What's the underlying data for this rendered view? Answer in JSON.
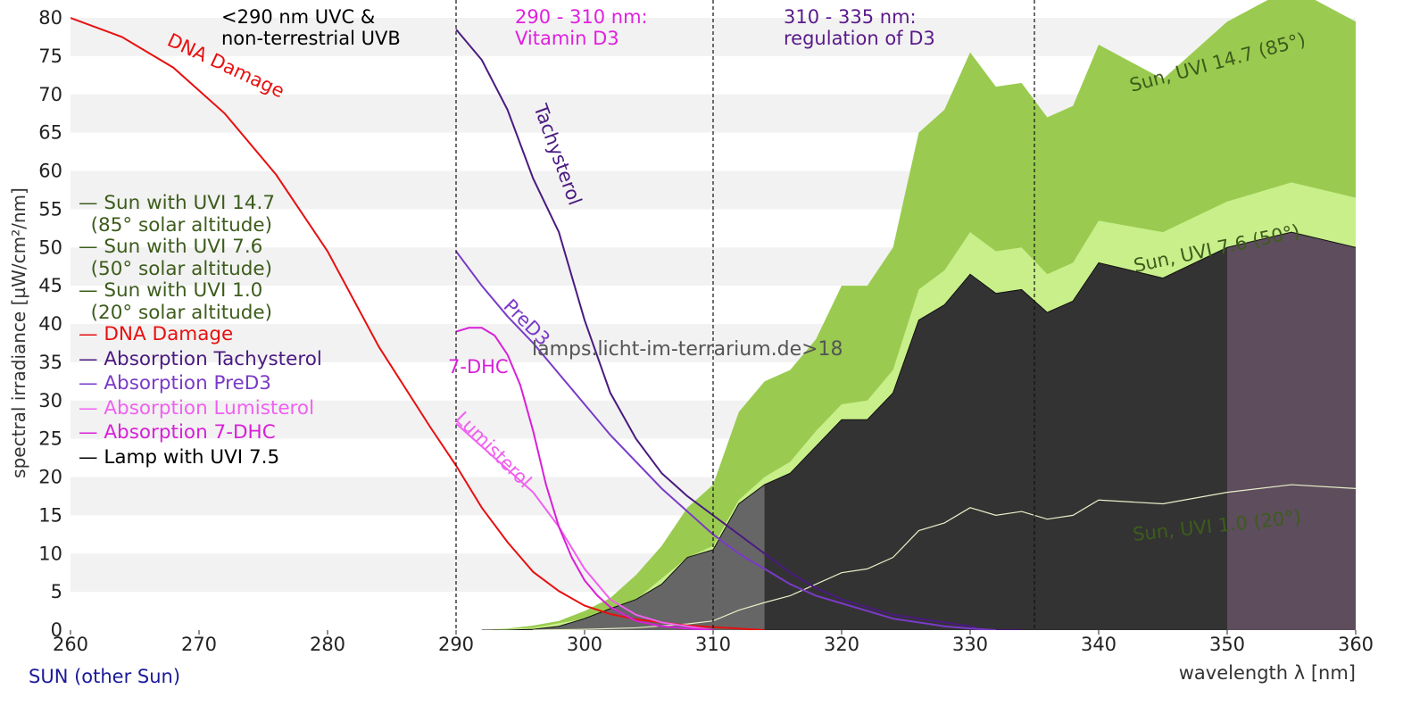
{
  "chart_data": {
    "type": "area",
    "xlabel": "wavelength λ [nm]",
    "ylabel": "spectral irradiance [µW/cm²/nm]",
    "xlim": [
      260,
      360
    ],
    "ylim": [
      0,
      80
    ],
    "x_ticks": [
      "260",
      "270",
      "280",
      "290",
      "300",
      "310",
      "320",
      "330",
      "340",
      "350",
      "360"
    ],
    "y_ticks": [
      "0",
      "5",
      "10",
      "15",
      "20",
      "25",
      "30",
      "35",
      "40",
      "45",
      "50",
      "55",
      "60",
      "65",
      "70",
      "75",
      "80"
    ],
    "grid": "horizontal alternating bands",
    "vlines": [
      290,
      310,
      335
    ],
    "region_labels": [
      {
        "text": "<290 nm UVC &\nnon-terrestrial UVB",
        "color": "#000000"
      },
      {
        "text": "290 - 310 nm:\nVitamin D3",
        "color": "#e020e0"
      },
      {
        "text": "310 - 335 nm:\nregulation of D3",
        "color": "#5a1a8a"
      }
    ],
    "watermark": "lamps.licht-im-terrarium.de>18",
    "series": [
      {
        "name": "Sun with UVI 14.7\n  (85° solar altitude)",
        "color": "#9acb50",
        "x": [
          292,
          294,
          296,
          298,
          300,
          302,
          304,
          306,
          308,
          310,
          312,
          314,
          316,
          318,
          320,
          322,
          324,
          326,
          328,
          330,
          332,
          334,
          336,
          338,
          340,
          345,
          350,
          355,
          360
        ],
        "y": [
          0.0,
          0.2,
          0.6,
          1.2,
          2.5,
          4.2,
          7.2,
          11.0,
          16.0,
          19.0,
          28.5,
          32.5,
          34.0,
          38.0,
          45.0,
          45.0,
          50.0,
          65.0,
          68.0,
          75.5,
          71.0,
          71.5,
          67.0,
          68.5,
          76.5,
          72.0,
          79.5,
          84.0,
          79.5
        ]
      },
      {
        "name": "Sun with UVI 7.6\n  (50° solar altitude)",
        "color": "#c8ef8a",
        "x": [
          292,
          296,
          300,
          304,
          308,
          310,
          312,
          314,
          316,
          318,
          320,
          322,
          324,
          326,
          328,
          330,
          332,
          334,
          336,
          338,
          340,
          345,
          350,
          355,
          360
        ],
        "y": [
          0.0,
          0.3,
          1.5,
          4.0,
          9.5,
          11.0,
          17.0,
          20.0,
          22.0,
          26.0,
          29.5,
          30.0,
          34.0,
          44.5,
          47.0,
          52.0,
          49.5,
          50.0,
          46.5,
          48.0,
          53.5,
          52.0,
          56.0,
          58.5,
          56.5
        ]
      },
      {
        "name": "Sun with UVI 1.0\n  (20° solar altitude)",
        "color": "#3d5c1c",
        "x": [
          296,
          300,
          304,
          308,
          310,
          312,
          314,
          316,
          318,
          320,
          322,
          324,
          326,
          328,
          330,
          332,
          334,
          336,
          338,
          340,
          345,
          350,
          355,
          360
        ],
        "y": [
          0.0,
          0.1,
          0.3,
          0.8,
          1.2,
          2.6,
          3.6,
          4.5,
          6.0,
          7.5,
          8.0,
          9.5,
          13.0,
          14.0,
          16.0,
          15.0,
          15.5,
          14.5,
          15.0,
          17.0,
          16.5,
          18.0,
          19.0,
          18.5
        ]
      },
      {
        "name": "DNA Damage",
        "color": "#e81010",
        "x": [
          260,
          264,
          268,
          272,
          276,
          280,
          284,
          288,
          290,
          292,
          294,
          296,
          298,
          300,
          302,
          304,
          306,
          308,
          310,
          312,
          314
        ],
        "y": [
          80.0,
          77.5,
          73.5,
          67.5,
          59.5,
          49.5,
          37.0,
          26.5,
          21.5,
          16.0,
          11.5,
          7.6,
          5.1,
          3.2,
          2.1,
          1.4,
          1.0,
          0.6,
          0.4,
          0.2,
          0.0
        ]
      },
      {
        "name": "Absorption Tachysterol",
        "color": "#4a1a80",
        "x": [
          290,
          292,
          294,
          296,
          298,
          300,
          302,
          304,
          306,
          308,
          310,
          312,
          314,
          316,
          318,
          320,
          322,
          324,
          326,
          328,
          330,
          331,
          334
        ],
        "y": [
          78.5,
          74.5,
          68.0,
          59.0,
          52.0,
          40.5,
          31.0,
          25.0,
          20.5,
          17.5,
          15.0,
          12.5,
          10.0,
          7.5,
          5.5,
          4.0,
          3.0,
          2.0,
          1.5,
          1.0,
          0.5,
          0.0,
          0.0
        ]
      },
      {
        "name": "Absorption PreD3",
        "color": "#7a3ac8",
        "x": [
          290,
          292,
          294,
          296,
          298,
          300,
          302,
          304,
          306,
          308,
          310,
          312,
          314,
          316,
          318,
          320,
          322,
          324,
          326,
          328,
          330,
          332
        ],
        "y": [
          49.5,
          45.0,
          41.0,
          37.5,
          33.5,
          29.5,
          25.5,
          22.0,
          18.5,
          15.5,
          12.5,
          10.0,
          8.0,
          6.0,
          4.5,
          3.5,
          2.5,
          1.5,
          1.0,
          0.5,
          0.2,
          0.0
        ]
      },
      {
        "name": "Absorption Lumisterol",
        "color": "#f060f0",
        "x": [
          290,
          292,
          294,
          296,
          298,
          300,
          302,
          304,
          306,
          308,
          310
        ],
        "y": [
          27.0,
          24.0,
          21.0,
          18.0,
          13.5,
          8.0,
          4.0,
          2.0,
          1.0,
          0.5,
          0.0
        ]
      },
      {
        "name": "Absorption 7-DHC",
        "color": "#d820d8",
        "x": [
          290,
          291,
          292,
          293,
          294,
          295,
          296,
          297,
          298,
          299,
          300,
          301,
          302,
          304,
          306,
          308,
          310
        ],
        "y": [
          39.0,
          39.5,
          39.5,
          38.5,
          36.0,
          32.0,
          26.0,
          19.0,
          13.5,
          9.5,
          6.5,
          4.5,
          3.0,
          1.2,
          0.5,
          0.2,
          0.0
        ]
      },
      {
        "name": "Lamp with UVI 7.5",
        "color": "#000000",
        "x": [
          292,
          294,
          296,
          298,
          300,
          302,
          304,
          306,
          308,
          310,
          312,
          314,
          316,
          318,
          320,
          322,
          324,
          326,
          328,
          330,
          332,
          334,
          336,
          338,
          340,
          345,
          350,
          355,
          360
        ],
        "y": [
          0.0,
          0.0,
          0.1,
          0.5,
          1.5,
          2.8,
          4.0,
          6.0,
          9.5,
          10.5,
          16.5,
          19.0,
          20.5,
          24.0,
          27.5,
          27.5,
          31.0,
          40.5,
          42.5,
          46.5,
          44.0,
          44.5,
          41.5,
          43.0,
          48.0,
          46.0,
          50.0,
          52.0,
          50.0
        ]
      }
    ],
    "curve_labels": [
      {
        "text": "DNA Damage",
        "color": "#e81010"
      },
      {
        "text": "Tachysterol",
        "color": "#4a1a80"
      },
      {
        "text": "PreD3",
        "color": "#7a3ac8"
      },
      {
        "text": "7-DHC",
        "color": "#d820d8"
      },
      {
        "text": "Lumisterol",
        "color": "#f060f0"
      },
      {
        "text": "Sun, UVI 14.7 (85°)",
        "color": "#3d5c1c"
      },
      {
        "text": "Sun, UVI 7.6 (50°)",
        "color": "#3d5c1c"
      },
      {
        "text": "Sun, UVI 1.0 (20°)",
        "color": "#3d5c1c"
      }
    ],
    "lamp_region_colors": {
      "shortwave": "#666666",
      "main": "#333333",
      "longwave": "#5d4d5d"
    },
    "lamp_region_bounds_nm": [
      314,
      350
    ]
  },
  "footer": {
    "link": "SUN (other Sun)",
    "link_color": "#1a1a9a"
  }
}
